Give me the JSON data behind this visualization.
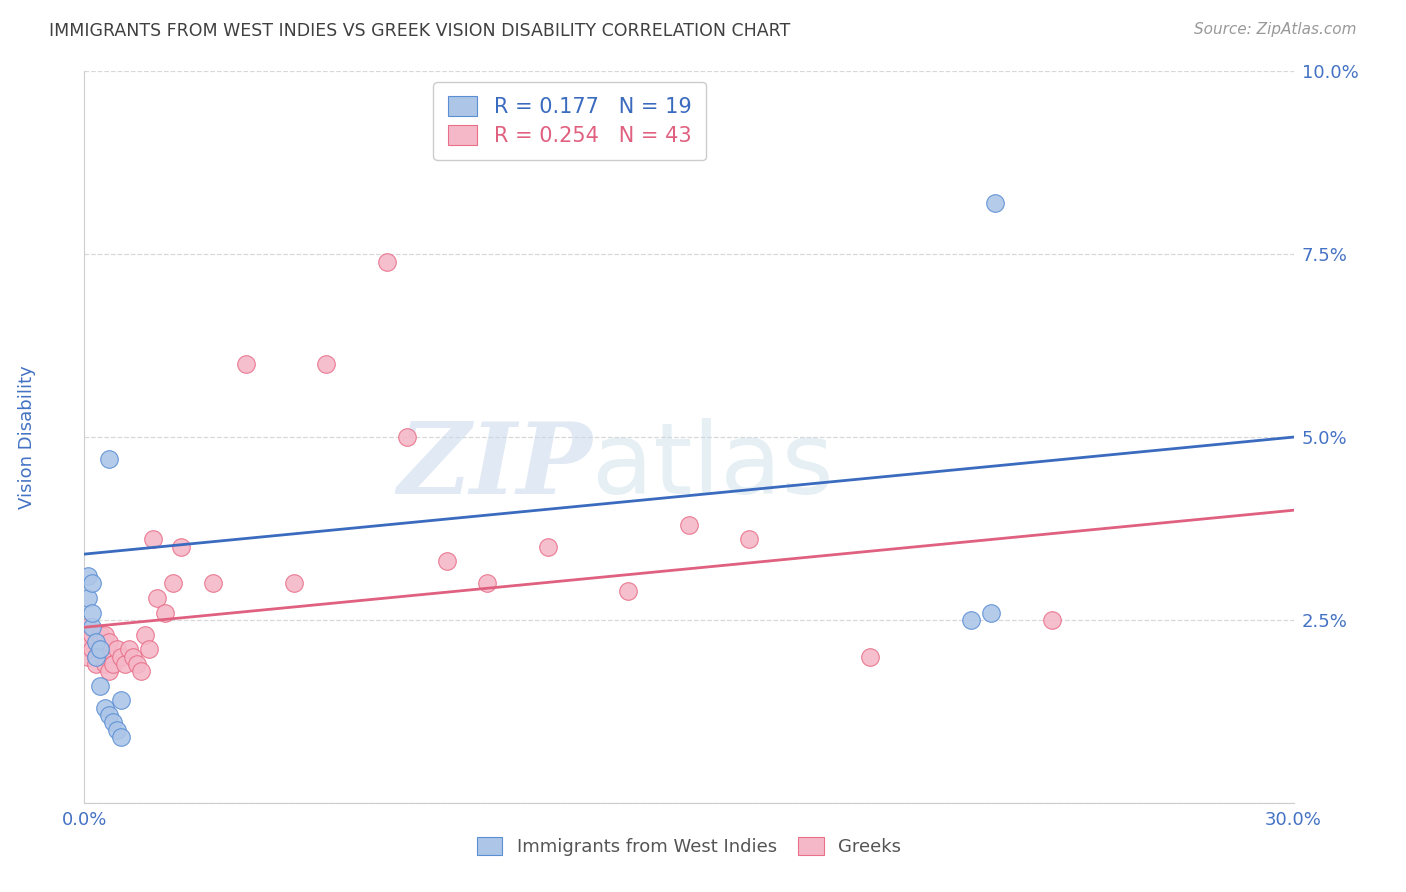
{
  "title": "IMMIGRANTS FROM WEST INDIES VS GREEK VISION DISABILITY CORRELATION CHART",
  "source": "Source: ZipAtlas.com",
  "ylabel": "Vision Disability",
  "xlim": [
    0.0,
    0.3
  ],
  "ylim": [
    0.0,
    0.1
  ],
  "xticks": [
    0.0,
    0.05,
    0.1,
    0.15,
    0.2,
    0.25,
    0.3
  ],
  "yticks": [
    0.0,
    0.025,
    0.05,
    0.075,
    0.1
  ],
  "blue_R": 0.177,
  "blue_N": 19,
  "pink_R": 0.254,
  "pink_N": 43,
  "blue_line_start_y": 0.034,
  "blue_line_end_y": 0.05,
  "pink_line_start_y": 0.024,
  "pink_line_end_y": 0.04,
  "blue_scatter_x": [
    0.001,
    0.001,
    0.002,
    0.002,
    0.002,
    0.003,
    0.003,
    0.004,
    0.004,
    0.005,
    0.006,
    0.006,
    0.007,
    0.008,
    0.009,
    0.009,
    0.22,
    0.225,
    0.226
  ],
  "blue_scatter_y": [
    0.028,
    0.031,
    0.024,
    0.026,
    0.03,
    0.022,
    0.02,
    0.021,
    0.016,
    0.013,
    0.012,
    0.047,
    0.011,
    0.01,
    0.014,
    0.009,
    0.025,
    0.026,
    0.082
  ],
  "pink_scatter_x": [
    0.001,
    0.001,
    0.001,
    0.002,
    0.002,
    0.003,
    0.003,
    0.004,
    0.004,
    0.005,
    0.005,
    0.005,
    0.006,
    0.006,
    0.007,
    0.008,
    0.009,
    0.01,
    0.011,
    0.012,
    0.013,
    0.014,
    0.015,
    0.016,
    0.017,
    0.018,
    0.02,
    0.022,
    0.024,
    0.032,
    0.04,
    0.052,
    0.06,
    0.075,
    0.08,
    0.09,
    0.1,
    0.115,
    0.135,
    0.15,
    0.165,
    0.195,
    0.24
  ],
  "pink_scatter_y": [
    0.022,
    0.024,
    0.02,
    0.021,
    0.023,
    0.02,
    0.019,
    0.021,
    0.023,
    0.019,
    0.021,
    0.023,
    0.022,
    0.018,
    0.019,
    0.021,
    0.02,
    0.019,
    0.021,
    0.02,
    0.019,
    0.018,
    0.023,
    0.021,
    0.036,
    0.028,
    0.026,
    0.03,
    0.035,
    0.03,
    0.06,
    0.03,
    0.06,
    0.074,
    0.05,
    0.033,
    0.03,
    0.035,
    0.029,
    0.038,
    0.036,
    0.02,
    0.025
  ],
  "blue_color": "#adc6e8",
  "pink_color": "#f5b8c8",
  "blue_edge_color": "#5b8fd4",
  "pink_edge_color": "#e8708a",
  "blue_line_color": "#3a6bbf",
  "pink_line_color": "#e06080",
  "legend_blue_label": "Immigrants from West Indies",
  "legend_pink_label": "Greeks",
  "watermark_zip": "ZIP",
  "watermark_atlas": "atlas",
  "background_color": "#ffffff",
  "grid_color": "#d8d8d8",
  "title_color": "#404040",
  "axis_label_color": "#4472c4",
  "tick_color": "#4472c4"
}
